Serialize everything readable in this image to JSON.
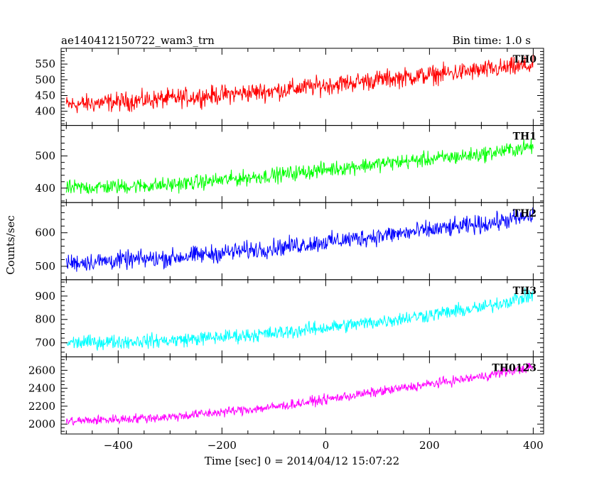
{
  "header": {
    "title": "ae140412150722_wam3_trn",
    "bin_time": "Bin time: 1.0 s"
  },
  "chart_data": {
    "type": "line",
    "xlabel": "Time [sec] 0 = 2014/04/12 15:07:22",
    "ylabel": "Counts/sec",
    "xlim": [
      -510,
      420
    ],
    "x_ticks": [
      -400,
      -200,
      0,
      200,
      400
    ],
    "x_range": [
      -500,
      400
    ],
    "x_step": 1,
    "panels": [
      {
        "name": "TH0",
        "color": "#ff0000",
        "ylim": [
          355,
          600
        ],
        "y_ticks": [
          400,
          450,
          500,
          550
        ],
        "trend": [
          [
            -500,
            420
          ],
          [
            -300,
            440
          ],
          [
            -100,
            465
          ],
          [
            100,
            500
          ],
          [
            300,
            530
          ],
          [
            400,
            545
          ]
        ],
        "noise_amplitude": 45
      },
      {
        "name": "TH1",
        "color": "#00ff00",
        "ylim": [
          355,
          595
        ],
        "y_ticks": [
          400,
          500
        ],
        "trend": [
          [
            -500,
            400
          ],
          [
            -300,
            410
          ],
          [
            -100,
            440
          ],
          [
            100,
            475
          ],
          [
            300,
            505
          ],
          [
            400,
            530
          ]
        ],
        "noise_amplitude": 35
      },
      {
        "name": "TH2",
        "color": "#0000ff",
        "ylim": [
          460,
          690
        ],
        "y_ticks": [
          500,
          600
        ],
        "trend": [
          [
            -500,
            510
          ],
          [
            -300,
            525
          ],
          [
            -100,
            555
          ],
          [
            100,
            590
          ],
          [
            300,
            625
          ],
          [
            400,
            650
          ]
        ],
        "noise_amplitude": 40
      },
      {
        "name": "TH3",
        "color": "#00ffff",
        "ylim": [
          640,
          970
        ],
        "y_ticks": [
          700,
          800,
          900
        ],
        "trend": [
          [
            -500,
            700
          ],
          [
            -300,
            710
          ],
          [
            -100,
            740
          ],
          [
            100,
            790
          ],
          [
            300,
            850
          ],
          [
            400,
            905
          ]
        ],
        "noise_amplitude": 45
      },
      {
        "name": "TH0123",
        "color": "#ff00ff",
        "ylim": [
          1890,
          2750
        ],
        "y_ticks": [
          2000,
          2200,
          2400,
          2600
        ],
        "trend": [
          [
            -500,
            2030
          ],
          [
            -300,
            2080
          ],
          [
            -100,
            2190
          ],
          [
            100,
            2360
          ],
          [
            300,
            2530
          ],
          [
            400,
            2640
          ]
        ],
        "noise_amplitude": 80
      }
    ]
  }
}
